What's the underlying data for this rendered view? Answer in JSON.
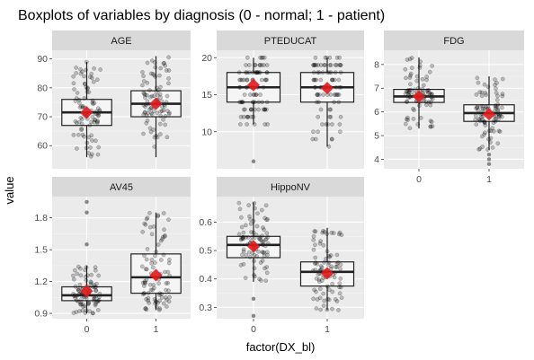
{
  "chart_data": {
    "type": "boxplot",
    "title": "Boxplots of variables by diagnosis (0 - normal; 1 - patient)",
    "xlabel": "factor(DX_bl)",
    "ylabel": "value",
    "categories": [
      "0",
      "1"
    ],
    "colors": {
      "panel_background": "#ebebeb",
      "strip_background": "#d9d9d9",
      "box_fill": "#f5f5f5",
      "points": "#000000",
      "mean_marker": "#e31a1c"
    },
    "panels": [
      {
        "name": "AGE",
        "ylim": [
          52,
          93
        ],
        "yticks": [
          60,
          70,
          80,
          90
        ],
        "groups": [
          {
            "category": "0",
            "min": 56,
            "q1": 67,
            "median": 71.5,
            "q3": 76,
            "max": 89,
            "mean": 71.5,
            "outliers": []
          },
          {
            "category": "1",
            "min": 56,
            "q1": 70,
            "median": 74.5,
            "q3": 79,
            "max": 91,
            "mean": 74.5,
            "outliers": []
          }
        ]
      },
      {
        "name": "PTEDUCAT",
        "ylim": [
          5,
          21
        ],
        "yticks": [
          10,
          15,
          20
        ],
        "groups": [
          {
            "category": "0",
            "min": 11,
            "q1": 14,
            "median": 16,
            "q3": 18,
            "max": 20,
            "mean": 16.3,
            "outliers": [
              6
            ]
          },
          {
            "category": "1",
            "min": 8,
            "q1": 14,
            "median": 16,
            "q3": 18,
            "max": 20,
            "mean": 15.9,
            "outliers": []
          }
        ]
      },
      {
        "name": "FDG",
        "ylim": [
          3.6,
          8.6
        ],
        "yticks": [
          4,
          5,
          6,
          7,
          8
        ],
        "groups": [
          {
            "category": "0",
            "min": 5.3,
            "q1": 6.4,
            "median": 6.65,
            "q3": 6.95,
            "max": 8.3,
            "mean": 6.65,
            "outliers": []
          },
          {
            "category": "1",
            "min": 4.4,
            "q1": 5.6,
            "median": 5.95,
            "q3": 6.3,
            "max": 7.5,
            "mean": 5.9,
            "outliers": [
              3.8,
              4.0,
              4.2
            ]
          }
        ]
      },
      {
        "name": "AV45",
        "ylim": [
          0.85,
          2.0
        ],
        "yticks": [
          0.9,
          1.2,
          1.5,
          1.8
        ],
        "groups": [
          {
            "category": "0",
            "min": 0.9,
            "q1": 1.02,
            "median": 1.07,
            "q3": 1.15,
            "max": 1.35,
            "mean": 1.11,
            "outliers": [
              1.85,
              1.95,
              1.55
            ]
          },
          {
            "category": "1",
            "min": 0.93,
            "q1": 1.09,
            "median": 1.24,
            "q3": 1.46,
            "max": 1.85,
            "mean": 1.26,
            "outliers": []
          }
        ]
      },
      {
        "name": "HippoNV",
        "ylim": [
          0.26,
          0.69
        ],
        "yticks": [
          0.3,
          0.4,
          0.5,
          0.6
        ],
        "groups": [
          {
            "category": "0",
            "min": 0.39,
            "q1": 0.475,
            "median": 0.52,
            "q3": 0.55,
            "max": 0.67,
            "mean": 0.515,
            "outliers": [
              0.27,
              0.33
            ]
          },
          {
            "category": "1",
            "min": 0.29,
            "q1": 0.375,
            "median": 0.425,
            "q3": 0.46,
            "max": 0.58,
            "mean": 0.42,
            "outliers": []
          }
        ]
      }
    ]
  }
}
